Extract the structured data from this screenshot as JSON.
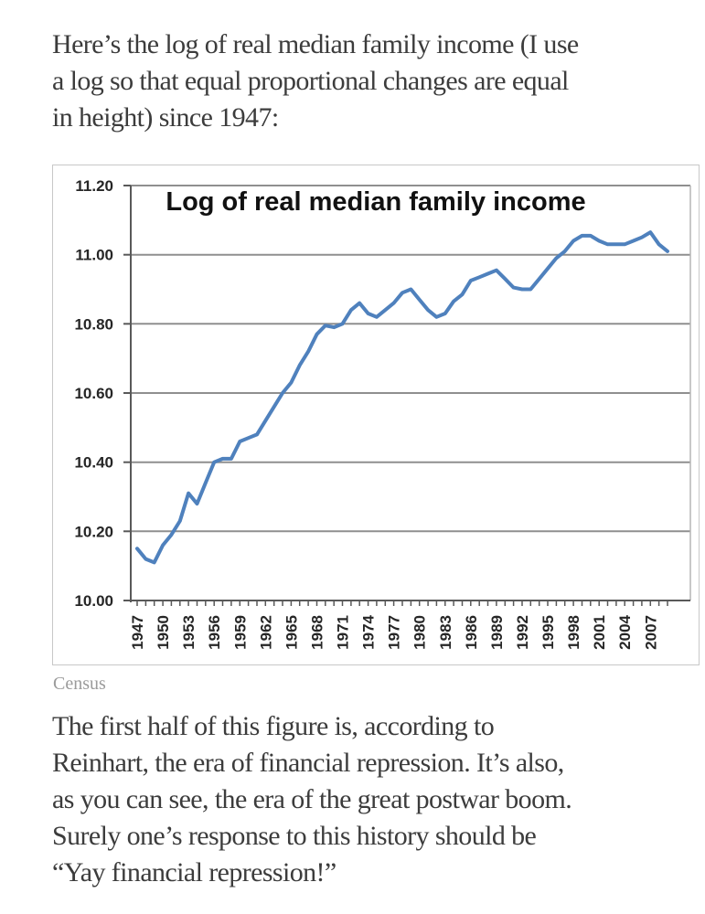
{
  "intro_paragraph": {
    "lines": [
      "Here’s the log of real median family income (I use",
      "a log so that equal proportional changes are equal",
      "in height) since 1947:"
    ]
  },
  "chart_data": {
    "type": "line",
    "title": "Log of real median family income",
    "x": [
      1947,
      1948,
      1949,
      1950,
      1951,
      1952,
      1953,
      1954,
      1955,
      1956,
      1957,
      1958,
      1959,
      1960,
      1961,
      1962,
      1963,
      1964,
      1965,
      1966,
      1967,
      1968,
      1969,
      1970,
      1971,
      1972,
      1973,
      1974,
      1975,
      1976,
      1977,
      1978,
      1979,
      1980,
      1981,
      1982,
      1983,
      1984,
      1985,
      1986,
      1987,
      1988,
      1989,
      1990,
      1991,
      1992,
      1993,
      1994,
      1995,
      1996,
      1997,
      1998,
      1999,
      2000,
      2001,
      2002,
      2003,
      2004,
      2005,
      2006,
      2007,
      2008,
      2009
    ],
    "values": [
      10.15,
      10.12,
      10.11,
      10.16,
      10.19,
      10.23,
      10.31,
      10.28,
      10.34,
      10.4,
      10.41,
      10.41,
      10.46,
      10.47,
      10.48,
      10.52,
      10.56,
      10.6,
      10.63,
      10.68,
      10.72,
      10.77,
      10.795,
      10.79,
      10.8,
      10.84,
      10.86,
      10.83,
      10.82,
      10.84,
      10.86,
      10.89,
      10.9,
      10.87,
      10.84,
      10.82,
      10.83,
      10.865,
      10.885,
      10.925,
      10.935,
      10.945,
      10.955,
      10.93,
      10.905,
      10.9,
      10.9,
      10.93,
      10.96,
      10.99,
      11.01,
      11.04,
      11.055,
      11.055,
      11.04,
      11.03,
      11.03,
      11.03,
      11.04,
      11.05,
      11.065,
      11.03,
      11.01
    ],
    "ylim": [
      10.0,
      11.2
    ],
    "yticks": [
      11.2,
      11.0,
      10.8,
      10.6,
      10.4,
      10.2,
      10.0
    ],
    "xtick_labels": [
      "1947",
      "1950",
      "1953",
      "1956",
      "1959",
      "1962",
      "1965",
      "1968",
      "1971",
      "1974",
      "1977",
      "1980",
      "1983",
      "1986",
      "1989",
      "1992",
      "1995",
      "1998",
      "2001",
      "2004",
      "2007"
    ],
    "grid": true,
    "legend": false,
    "line_color": "#4F81BD",
    "grid_color": "#8f8f8f",
    "axis_color": "#595959",
    "tick_label_color": "#262626",
    "title_color": "#111111",
    "source": "Census"
  },
  "closing_paragraph": {
    "lines": [
      "The first half of this figure is, according to",
      "Reinhart, the era of financial repression. It’s also,",
      "as you can see, the era of the great postwar boom.",
      "Surely one’s response to this history should be",
      "“Yay financial repression!”"
    ]
  }
}
